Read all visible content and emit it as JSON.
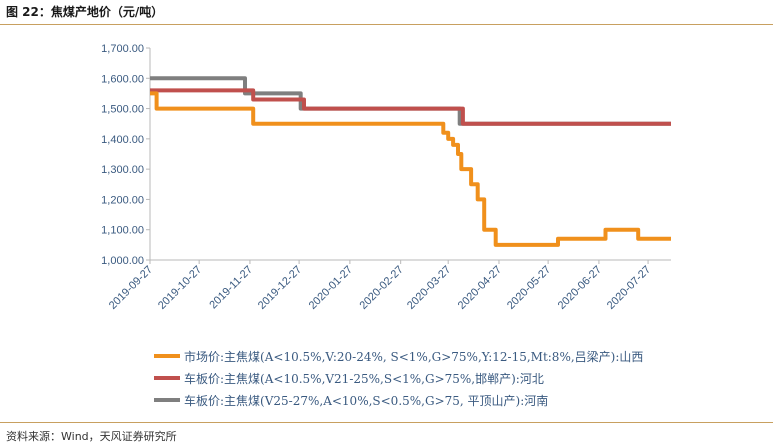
{
  "header": {
    "title": "图 22：焦煤产地价（元/吨）"
  },
  "footer": {
    "source": "资料来源：Wind，天风证券研究所"
  },
  "chart_data": {
    "type": "line",
    "title": "焦煤产地价（元/吨）",
    "xlabel": "",
    "ylabel": "",
    "ylim": [
      1000,
      1700
    ],
    "xlim": [
      "2019-09-27",
      "2020-08-10"
    ],
    "y_ticks": [
      "1,000.00",
      "1,100.00",
      "1,200.00",
      "1,300.00",
      "1,400.00",
      "1,500.00",
      "1,600.00",
      "1,700.00"
    ],
    "x_ticks": [
      "2019-09-27",
      "2019-10-27",
      "2019-11-27",
      "2019-12-27",
      "2020-01-27",
      "2020-02-27",
      "2020-03-27",
      "2020-04-27",
      "2020-05-27",
      "2020-06-27",
      "2020-07-27"
    ],
    "grid": false,
    "legend": "bottom",
    "series": [
      {
        "name": "市场价:主焦煤(A<10.5%,V:20-24%, S<1%,G>75%,Y:12-15,Mt:8%,吕梁产):山西",
        "color": "#f0901c",
        "points": [
          [
            "2019-09-27",
            1550
          ],
          [
            "2019-10-01",
            1550
          ],
          [
            "2019-10-01",
            1500
          ],
          [
            "2019-11-29",
            1500
          ],
          [
            "2019-11-29",
            1450
          ],
          [
            "2020-03-24",
            1450
          ],
          [
            "2020-03-24",
            1420
          ],
          [
            "2020-03-27",
            1420
          ],
          [
            "2020-03-27",
            1400
          ],
          [
            "2020-03-30",
            1400
          ],
          [
            "2020-03-30",
            1380
          ],
          [
            "2020-04-02",
            1380
          ],
          [
            "2020-04-02",
            1350
          ],
          [
            "2020-04-04",
            1350
          ],
          [
            "2020-04-04",
            1300
          ],
          [
            "2020-04-10",
            1300
          ],
          [
            "2020-04-10",
            1250
          ],
          [
            "2020-04-14",
            1250
          ],
          [
            "2020-04-14",
            1200
          ],
          [
            "2020-04-18",
            1200
          ],
          [
            "2020-04-18",
            1100
          ],
          [
            "2020-04-25",
            1100
          ],
          [
            "2020-04-25",
            1050
          ],
          [
            "2020-06-02",
            1050
          ],
          [
            "2020-06-02",
            1070
          ],
          [
            "2020-07-01",
            1070
          ],
          [
            "2020-07-01",
            1100
          ],
          [
            "2020-07-21",
            1100
          ],
          [
            "2020-07-21",
            1070
          ],
          [
            "2020-08-10",
            1070
          ]
        ]
      },
      {
        "name": "车板价:主焦煤(A<10.5%,V21-25%,S<1%,G>75%,邯郸产):河北",
        "color": "#c0504d",
        "points": [
          [
            "2019-09-27",
            1560
          ],
          [
            "2019-11-29",
            1560
          ],
          [
            "2019-11-29",
            1530
          ],
          [
            "2019-12-30",
            1530
          ],
          [
            "2019-12-30",
            1500
          ],
          [
            "2020-04-05",
            1500
          ],
          [
            "2020-04-05",
            1450
          ],
          [
            "2020-08-10",
            1450
          ]
        ]
      },
      {
        "name": "车板价:主焦煤(V25-27%,A<10%,S<0.5%,G>75, 平顶山产):河南",
        "color": "#7f7f7f",
        "points": [
          [
            "2019-09-27",
            1600
          ],
          [
            "2019-11-24",
            1600
          ],
          [
            "2019-11-24",
            1550
          ],
          [
            "2019-12-28",
            1550
          ],
          [
            "2019-12-28",
            1500
          ],
          [
            "2020-04-03",
            1500
          ],
          [
            "2020-04-03",
            1450
          ],
          [
            "2020-08-10",
            1450
          ]
        ]
      }
    ]
  }
}
